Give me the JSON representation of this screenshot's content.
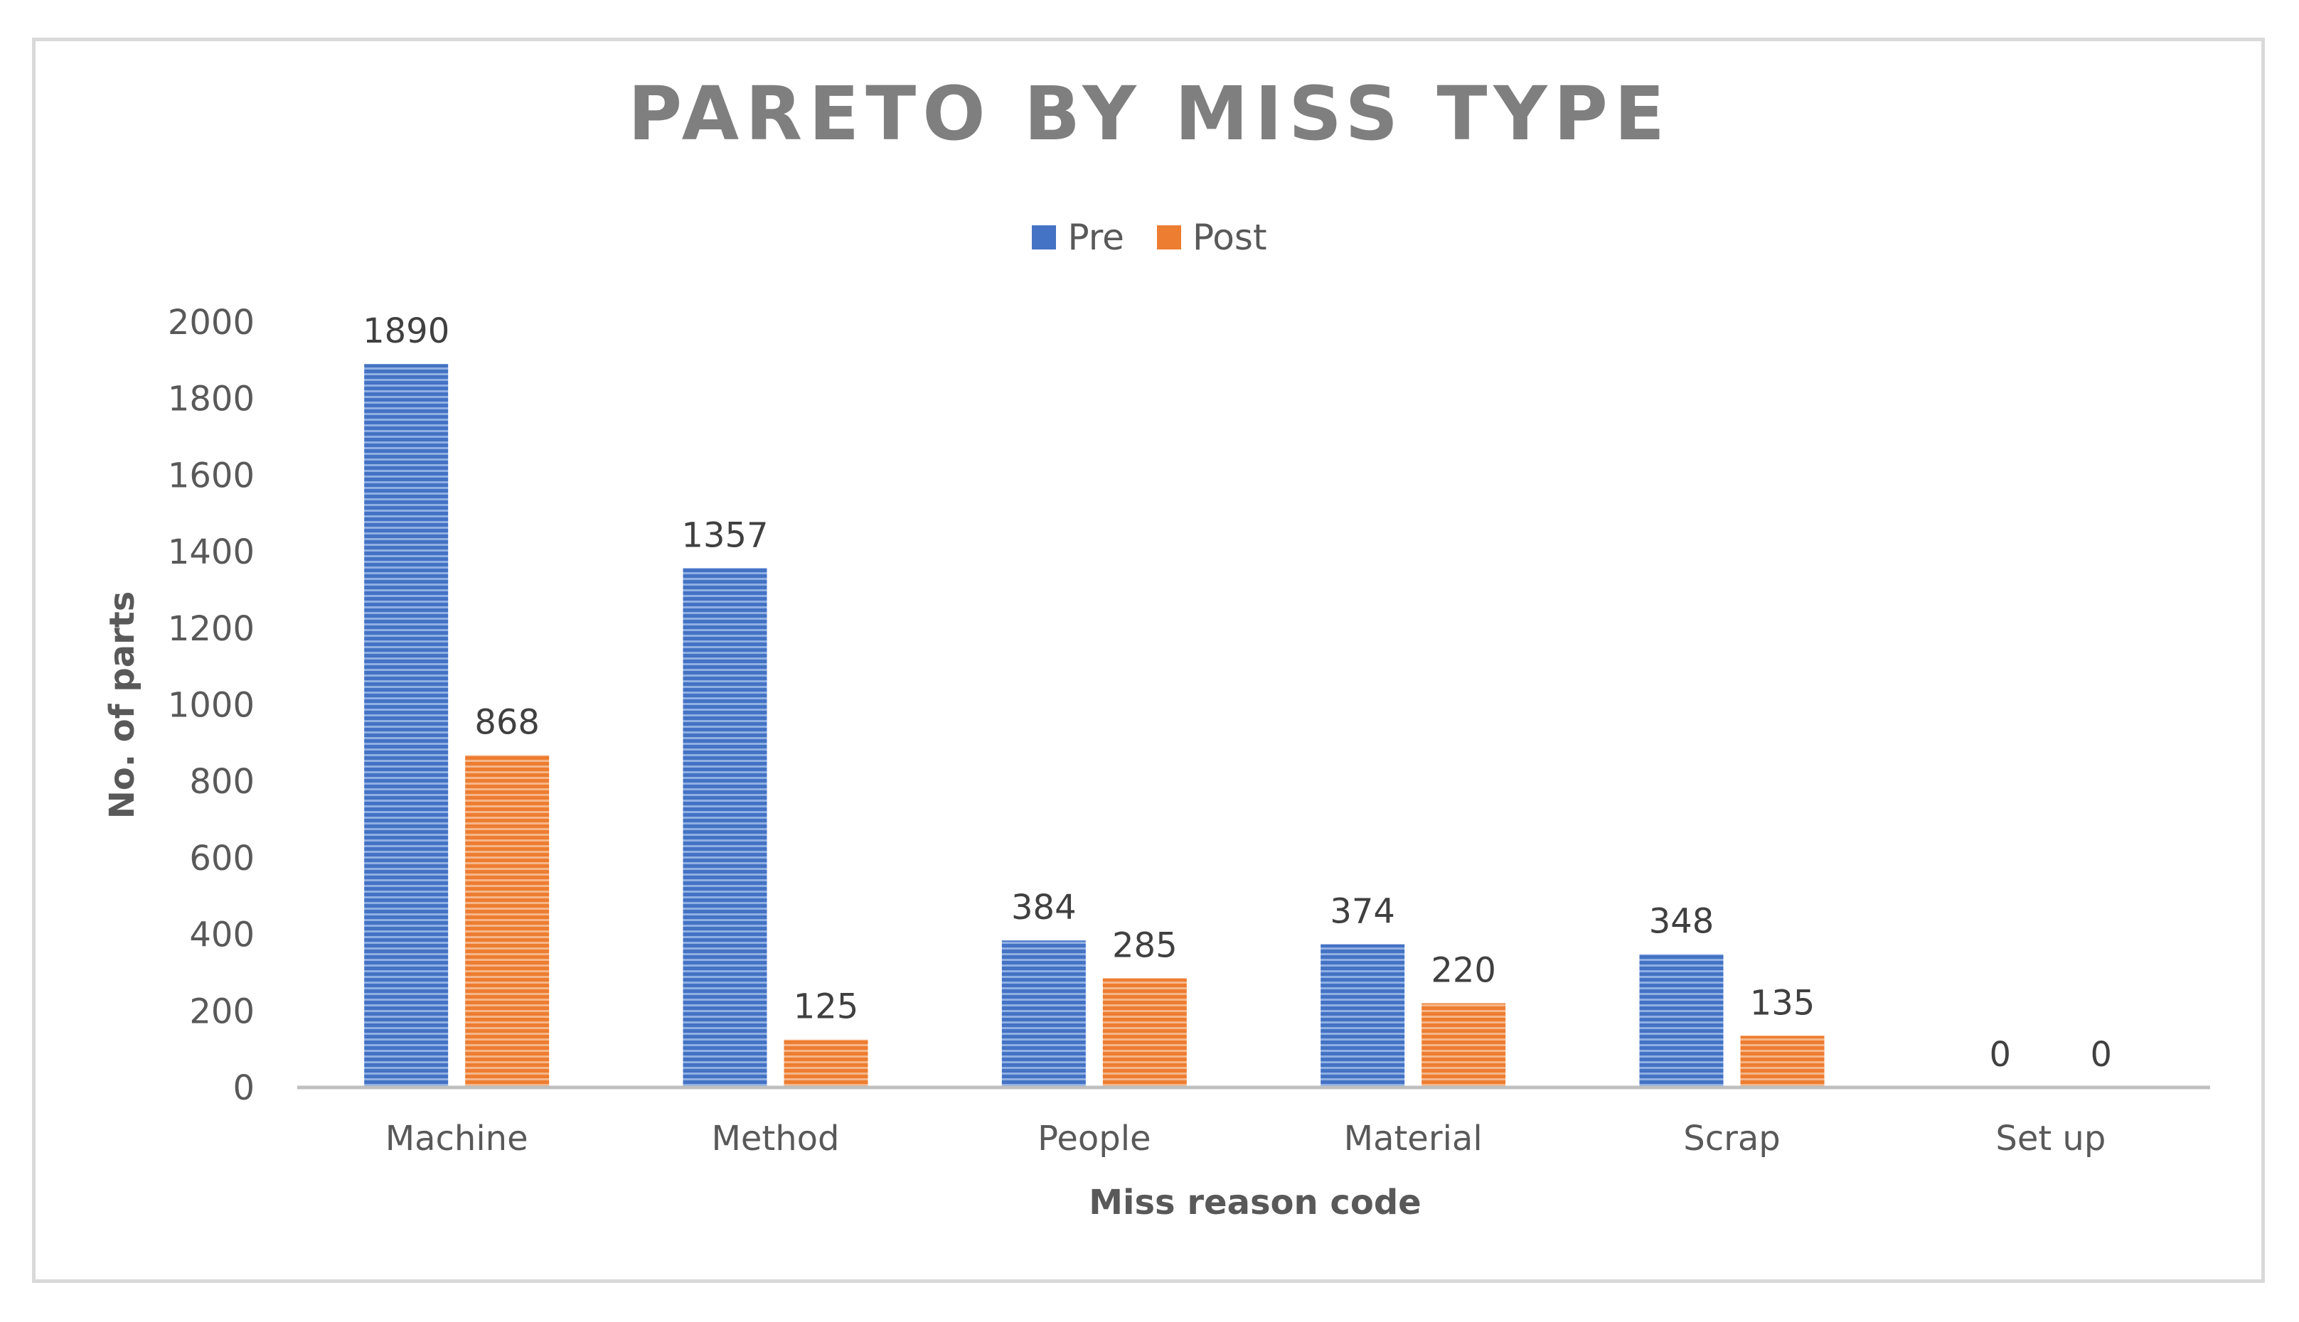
{
  "chart_data": {
    "type": "bar",
    "title": "PARETO BY MISS TYPE",
    "xlabel": "Miss reason code",
    "ylabel": "No. of parts",
    "categories": [
      "Machine",
      "Method",
      "People",
      "Material",
      "Scrap",
      "Set up"
    ],
    "series": [
      {
        "name": "Pre",
        "values": [
          1890,
          1357,
          384,
          374,
          348,
          0
        ],
        "color": "#4472c4"
      },
      {
        "name": "Post",
        "values": [
          868,
          125,
          285,
          220,
          135,
          0
        ],
        "color": "#ed7d31"
      }
    ],
    "ylim": [
      0,
      2000
    ],
    "yticks": [
      0,
      200,
      400,
      600,
      800,
      1000,
      1200,
      1400,
      1600,
      1800,
      2000
    ],
    "grid": false,
    "legend_position": "top-center",
    "data_labels": true
  }
}
